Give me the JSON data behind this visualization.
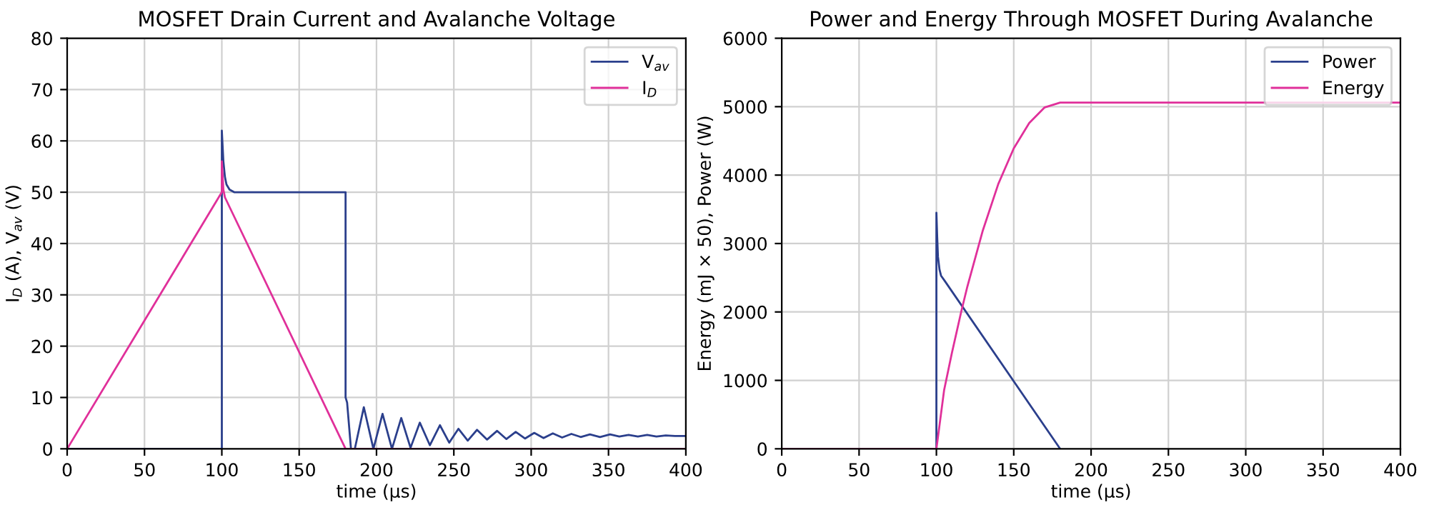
{
  "chart_data": [
    {
      "type": "line",
      "title": "MOSFET Drain Current and Avalanche Voltage",
      "xlabel": "time (µs)",
      "ylabel": "I$_{D}$ (A), V$_{av}$ (V)",
      "xlim": [
        0,
        400
      ],
      "ylim": [
        0,
        80
      ],
      "xticks": [
        0,
        50,
        100,
        150,
        200,
        250,
        300,
        350,
        400
      ],
      "yticks": [
        0,
        10,
        20,
        30,
        40,
        50,
        60,
        70,
        80
      ],
      "grid": true,
      "legend": "top right",
      "series": [
        {
          "name": "V$_{av}$",
          "color": "#2b3f8c",
          "x": [
            0,
            100,
            100,
            101,
            102,
            103,
            105,
            108,
            180,
            180,
            181,
            183.5,
            186,
            191.8,
            198,
            203.9,
            210,
            216,
            222,
            228,
            234.5,
            241,
            247,
            253,
            259,
            265,
            271.5,
            278,
            284,
            290,
            296,
            302,
            308,
            314,
            320,
            326,
            332,
            338,
            344.5,
            351,
            357,
            363,
            369,
            375,
            381,
            387,
            393,
            400
          ],
          "values": [
            0,
            0,
            62,
            56,
            53,
            51.5,
            50.5,
            50,
            50,
            10,
            9,
            0,
            0,
            8.1,
            0,
            6.8,
            0,
            6.0,
            0.2,
            5.1,
            0.7,
            4.6,
            1.2,
            3.9,
            1.6,
            3.7,
            1.8,
            3.5,
            1.9,
            3.3,
            2.0,
            3.1,
            2.1,
            3.0,
            2.2,
            2.9,
            2.3,
            2.8,
            2.3,
            2.8,
            2.4,
            2.7,
            2.4,
            2.7,
            2.4,
            2.6,
            2.5,
            2.5
          ]
        },
        {
          "name": "I$_{D}$",
          "color": "#e0309a",
          "x": [
            0,
            100,
            100,
            101,
            102,
            180,
            400
          ],
          "values": [
            0,
            50,
            56,
            50.5,
            49,
            0,
            0
          ]
        }
      ]
    },
    {
      "type": "line",
      "title": "Power and Energy Through MOSFET During Avalanche",
      "xlabel": "time (µs)",
      "ylabel": "Energy (mJ × 50), Power (W)",
      "xlim": [
        0,
        400
      ],
      "ylim": [
        0,
        6000
      ],
      "xticks": [
        0,
        50,
        100,
        150,
        200,
        250,
        300,
        350,
        400
      ],
      "yticks": [
        0,
        1000,
        2000,
        3000,
        4000,
        5000,
        6000
      ],
      "grid": true,
      "legend": "top right",
      "series": [
        {
          "name": "Power",
          "color": "#2b3f8c",
          "x": [
            0,
            100,
            100,
            100.5,
            101,
            102,
            103,
            105.5,
            180
          ],
          "values": [
            0,
            0,
            3450,
            3100,
            2810,
            2620,
            2530,
            2450,
            0
          ]
        },
        {
          "name": "Energy",
          "color": "#e0309a",
          "x": [
            0,
            100,
            105,
            110,
            116,
            120,
            130,
            140,
            150,
            160,
            170,
            180,
            400
          ],
          "values": [
            0,
            0,
            860,
            1400,
            2000,
            2370,
            3190,
            3870,
            4390,
            4760,
            4990,
            5060,
            5060
          ]
        }
      ]
    }
  ]
}
